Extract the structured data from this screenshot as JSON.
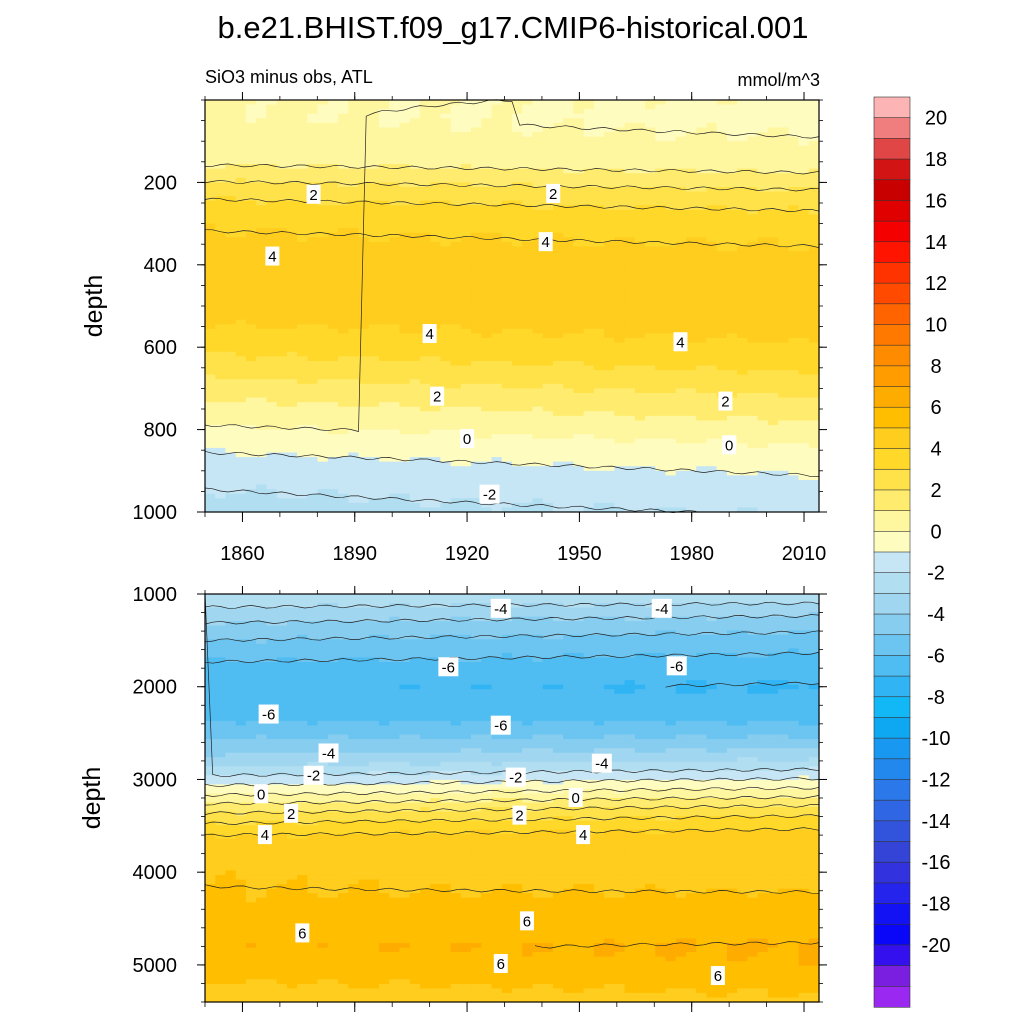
{
  "chart_data": {
    "type": "contour",
    "title": "b.e21.BHIST.f09_g17.CMIP6-historical.001",
    "subtitle_left": "SiO3 minus obs, ATL",
    "subtitle_right": "mmol/m^3",
    "x_ticks": [
      1860,
      1890,
      1920,
      1950,
      1980,
      2010
    ],
    "x_range": [
      1850,
      2014
    ],
    "colorbar": {
      "labels": [
        "20",
        "18",
        "16",
        "14",
        "12",
        "10",
        "8",
        "6",
        "4",
        "2",
        "0",
        "-2",
        "-4",
        "-6",
        "-8",
        "-10",
        "-12",
        "-14",
        "-16",
        "-18",
        "-20"
      ],
      "levels": [
        21,
        20,
        19,
        18,
        17,
        16,
        15,
        14,
        13,
        12,
        11,
        10,
        9,
        8,
        7,
        6,
        5,
        4,
        3,
        2,
        1,
        0,
        -1,
        -2,
        -3,
        -4,
        -5,
        -6,
        -7,
        -8,
        -9,
        -10,
        -11,
        -12,
        -13,
        -14,
        -15,
        -16,
        -17,
        -18,
        -19,
        -20,
        -21
      ],
      "colors": [
        "#fcb4b4",
        "#f07e7e",
        "#e04646",
        "#d21414",
        "#c80000",
        "#e00000",
        "#f40000",
        "#ff1400",
        "#ff3300",
        "#ff4a00",
        "#ff6400",
        "#ff7800",
        "#ff8c00",
        "#ff9c00",
        "#ffac00",
        "#ffbe00",
        "#ffcd1e",
        "#ffd82a",
        "#ffe24a",
        "#ffec6e",
        "#fff6a0",
        "#fffcc0",
        "#c6e6f5",
        "#b2def2",
        "#a0d6ef",
        "#86cdf0",
        "#6cc5f0",
        "#50bdf2",
        "#30b4f4",
        "#12b8f5",
        "#0ea8f2",
        "#1898f0",
        "#2288ee",
        "#2a78ea",
        "#2e66e4",
        "#3254dc",
        "#3444d6",
        "#3232de",
        "#2424ec",
        "#1212f4",
        "#0a06f8",
        "#3410ee",
        "#7a1ee0",
        "#9a28f0"
      ]
    },
    "panels": [
      {
        "name": "upper",
        "ylabel": "depth",
        "y_range": [
          0,
          1000
        ],
        "y_ticks": [
          200,
          400,
          600,
          800,
          1000
        ],
        "depths": [
          0,
          40,
          90,
          150,
          190,
          230,
          280,
          330,
          380,
          430,
          480,
          530,
          580,
          630,
          680,
          720,
          770,
          820,
          870,
          920,
          970,
          1000
        ],
        "values_first": [
          0.1,
          0.1,
          0.3,
          0.8,
          1.8,
          2.8,
          3.7,
          4.1,
          4.4,
          4.5,
          4.5,
          4.2,
          3.6,
          2.8,
          1.9,
          1.1,
          0.3,
          -0.5,
          -1.2,
          -1.8,
          -2.2,
          -2.4
        ],
        "values_last": [
          -0.1,
          -0.3,
          0.0,
          0.4,
          1.3,
          2.3,
          3.2,
          3.8,
          4.2,
          4.4,
          4.5,
          4.4,
          4.1,
          3.5,
          2.7,
          2.0,
          1.2,
          0.3,
          -0.5,
          -1.1,
          -1.6,
          -1.9
        ],
        "labels": [
          {
            "text": "2",
            "year": 1879,
            "depth": 230
          },
          {
            "text": "2",
            "year": 1943,
            "depth": 228
          },
          {
            "text": "4",
            "year": 1868,
            "depth": 380
          },
          {
            "text": "4",
            "year": 1941,
            "depth": 345
          },
          {
            "text": "4",
            "year": 1910,
            "depth": 568
          },
          {
            "text": "4",
            "year": 1977,
            "depth": 588
          },
          {
            "text": "2",
            "year": 1912,
            "depth": 720
          },
          {
            "text": "2",
            "year": 1989,
            "depth": 732
          },
          {
            "text": "0",
            "year": 1920,
            "depth": 823
          },
          {
            "text": "0",
            "year": 1990,
            "depth": 838
          },
          {
            "text": "-2",
            "year": 1926,
            "depth": 958
          }
        ]
      },
      {
        "name": "lower",
        "ylabel": "depth",
        "y_range": [
          1000,
          5400
        ],
        "y_ticks": [
          1000,
          2000,
          3000,
          4000,
          5000
        ],
        "depths": [
          1000,
          1200,
          1500,
          1800,
          2000,
          2300,
          2600,
          2800,
          3000,
          3150,
          3300,
          3450,
          3600,
          3800,
          4000,
          4300,
          4600,
          4800,
          5000,
          5200,
          5400
        ],
        "values_first": [
          -2.0,
          -3.4,
          -5.0,
          -6.3,
          -6.8,
          -6.4,
          -4.8,
          -3.5,
          -1.6,
          -0.2,
          1.4,
          2.8,
          4.0,
          4.6,
          4.9,
          5.1,
          5.5,
          5.9,
          5.6,
          4.9,
          4.4
        ],
        "values_last": [
          -2.2,
          -3.8,
          -5.5,
          -6.6,
          -7.1,
          -6.5,
          -4.6,
          -2.9,
          -0.9,
          0.6,
          2.2,
          3.5,
          4.4,
          4.6,
          4.5,
          5.2,
          5.6,
          6.1,
          5.9,
          5.3,
          4.8
        ],
        "labels": [
          {
            "text": "-4",
            "year": 1929,
            "depth": 1160
          },
          {
            "text": "-4",
            "year": 1972,
            "depth": 1160
          },
          {
            "text": "-6",
            "year": 1915,
            "depth": 1790
          },
          {
            "text": "-6",
            "year": 1976,
            "depth": 1780
          },
          {
            "text": "-6",
            "year": 1867,
            "depth": 2300
          },
          {
            "text": "-6",
            "year": 1929,
            "depth": 2420
          },
          {
            "text": "-4",
            "year": 1883,
            "depth": 2720
          },
          {
            "text": "-4",
            "year": 1956,
            "depth": 2830
          },
          {
            "text": "-2",
            "year": 1879,
            "depth": 2960
          },
          {
            "text": "-2",
            "year": 1933,
            "depth": 2980
          },
          {
            "text": "0",
            "year": 1865,
            "depth": 3160
          },
          {
            "text": "0",
            "year": 1949,
            "depth": 3200
          },
          {
            "text": "2",
            "year": 1873,
            "depth": 3370
          },
          {
            "text": "2",
            "year": 1934,
            "depth": 3390
          },
          {
            "text": "4",
            "year": 1866,
            "depth": 3600
          },
          {
            "text": "4",
            "year": 1951,
            "depth": 3600
          },
          {
            "text": "6",
            "year": 1876,
            "depth": 4660
          },
          {
            "text": "6",
            "year": 1936,
            "depth": 4530
          },
          {
            "text": "6",
            "year": 1929,
            "depth": 4990
          },
          {
            "text": "6",
            "year": 1987,
            "depth": 5120
          }
        ]
      }
    ]
  }
}
